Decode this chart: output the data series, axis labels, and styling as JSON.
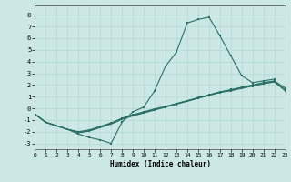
{
  "xlabel": "Humidex (Indice chaleur)",
  "bg_color": "#cce8e4",
  "line_color": "#2a7068",
  "grid_color": "#afd6d2",
  "xlim": [
    0,
    23
  ],
  "ylim": [
    -3.5,
    8.8
  ],
  "xticks": [
    0,
    1,
    2,
    3,
    4,
    5,
    6,
    7,
    8,
    9,
    10,
    11,
    12,
    13,
    14,
    15,
    16,
    17,
    18,
    19,
    20,
    21,
    22,
    23
  ],
  "yticks": [
    -3,
    -2,
    -1,
    0,
    1,
    2,
    3,
    4,
    5,
    6,
    7,
    8
  ],
  "line1_x": [
    0,
    1,
    2,
    3,
    4,
    5,
    6,
    7,
    8,
    9,
    10,
    11,
    12,
    13,
    14,
    15,
    16,
    17,
    18,
    19,
    20,
    21,
    22
  ],
  "line1_y": [
    -0.5,
    -1.2,
    -1.5,
    -1.8,
    -2.2,
    -2.5,
    -2.7,
    -3.0,
    -1.2,
    -0.3,
    0.1,
    1.5,
    3.6,
    4.8,
    7.3,
    7.6,
    7.8,
    6.2,
    4.5,
    2.8,
    2.2,
    2.35,
    2.5
  ],
  "line2_x": [
    0,
    1,
    2,
    3,
    4,
    5,
    6,
    7,
    8,
    9,
    10,
    11,
    12,
    13,
    14,
    15,
    16,
    17,
    18,
    19,
    20,
    21,
    22,
    23
  ],
  "line2_y": [
    -0.5,
    -1.2,
    -1.5,
    -1.8,
    -2.0,
    -1.85,
    -1.55,
    -1.25,
    -0.85,
    -0.55,
    -0.3,
    -0.05,
    0.15,
    0.4,
    0.65,
    0.9,
    1.15,
    1.4,
    1.6,
    1.8,
    2.0,
    2.2,
    2.35,
    1.75
  ],
  "line3_x": [
    0,
    1,
    2,
    3,
    4,
    5,
    6,
    7,
    8,
    9,
    10,
    11,
    12,
    13,
    14,
    15,
    16,
    17,
    18,
    19,
    20,
    21,
    22,
    23
  ],
  "line3_y": [
    -0.5,
    -1.2,
    -1.5,
    -1.8,
    -2.05,
    -1.9,
    -1.6,
    -1.3,
    -0.9,
    -0.6,
    -0.35,
    -0.1,
    0.15,
    0.4,
    0.65,
    0.9,
    1.15,
    1.4,
    1.55,
    1.75,
    1.95,
    2.15,
    2.3,
    1.6
  ],
  "line4_x": [
    0,
    1,
    2,
    3,
    4,
    5,
    6,
    7,
    8,
    9,
    10,
    11,
    12,
    13,
    14,
    15,
    16,
    17,
    18,
    19,
    20,
    21,
    22,
    23
  ],
  "line4_y": [
    -0.5,
    -1.2,
    -1.5,
    -1.8,
    -2.1,
    -1.95,
    -1.65,
    -1.35,
    -0.95,
    -0.65,
    -0.4,
    -0.15,
    0.1,
    0.35,
    0.6,
    0.85,
    1.1,
    1.35,
    1.5,
    1.7,
    1.9,
    2.1,
    2.25,
    1.5
  ]
}
